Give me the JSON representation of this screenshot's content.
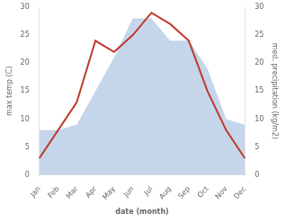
{
  "chart_data": {
    "type": "line",
    "categories": [
      "Jan",
      "Feb",
      "Mar",
      "Apr",
      "May",
      "Jun",
      "Jul",
      "Aug",
      "Sep",
      "Oct",
      "Nov",
      "Dec"
    ],
    "series": [
      {
        "type": "area",
        "color": "#c5d5ea",
        "axis": "y2",
        "values": [
          8,
          8,
          9,
          15,
          21,
          28,
          28,
          24,
          24,
          19,
          10,
          9
        ]
      },
      {
        "type": "line",
        "color": "#c0392b",
        "values": [
          3,
          8,
          13,
          24,
          22,
          25,
          29,
          27,
          24,
          15,
          8,
          3
        ]
      }
    ],
    "xlabel": "date (month)",
    "ylabel": "max temp (C)",
    "y2label": "med. precipitation (kg/m2)",
    "ylim": [
      0,
      30
    ],
    "yticks": [
      0,
      5,
      10,
      15,
      20,
      25,
      30
    ],
    "y2lim": [
      0,
      30
    ],
    "y2ticks": [
      0,
      5,
      10,
      15,
      20,
      25,
      30
    ],
    "grid": false
  }
}
